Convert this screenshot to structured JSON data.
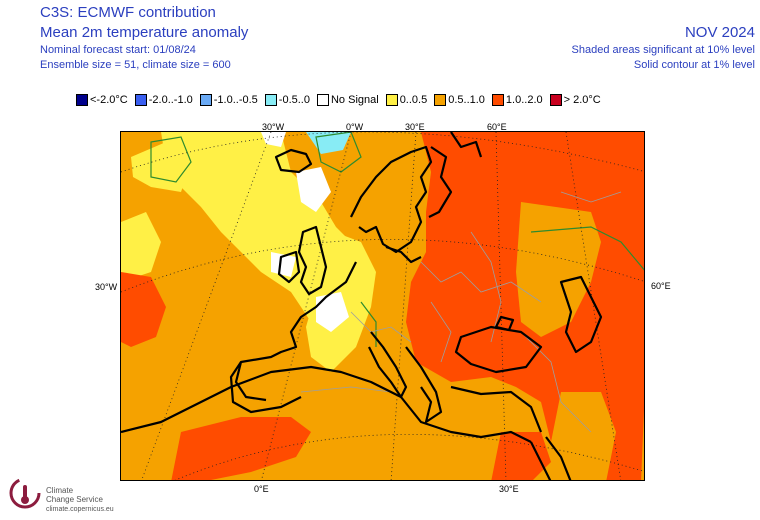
{
  "header": {
    "title": "C3S: ECMWF contribution",
    "subtitle": "Mean 2m temperature anomaly",
    "forecast_start": "Nominal forecast start: 01/08/24",
    "ensemble": "Ensemble size = 51, climate size = 600",
    "month": "NOV 2024",
    "shaded_note": "Shaded areas significant at 10% level",
    "contour_note": "Solid contour at 1% level"
  },
  "legend": [
    {
      "label": "<-2.0°C",
      "color": "#00008b"
    },
    {
      "label": "-2.0..-1.0",
      "color": "#3a5ff0"
    },
    {
      "label": "-1.0..-0.5",
      "color": "#6aaaf5"
    },
    {
      "label": "-0.5..0",
      "color": "#88ecf5"
    },
    {
      "label": "No Signal",
      "color": "#ffffff"
    },
    {
      "label": "0..0.5",
      "color": "#fff046"
    },
    {
      "label": "0.5..1.0",
      "color": "#f5a200"
    },
    {
      "label": "1.0..2.0",
      "color": "#ff4c00"
    },
    {
      "label": "> 2.0°C",
      "color": "#c8001e"
    }
  ],
  "ticks": {
    "top_30w": "30°W",
    "top_0w": "0°W",
    "top_30e": "30°E",
    "top_60e": "60°E",
    "left_30w": "30°W",
    "right_60e": "60°E",
    "bottom_0e": "0°E",
    "bottom_30e": "30°E"
  },
  "logo": {
    "line1": "Climate",
    "line2": "Change Service",
    "url": "climate.copernicus.eu"
  }
}
